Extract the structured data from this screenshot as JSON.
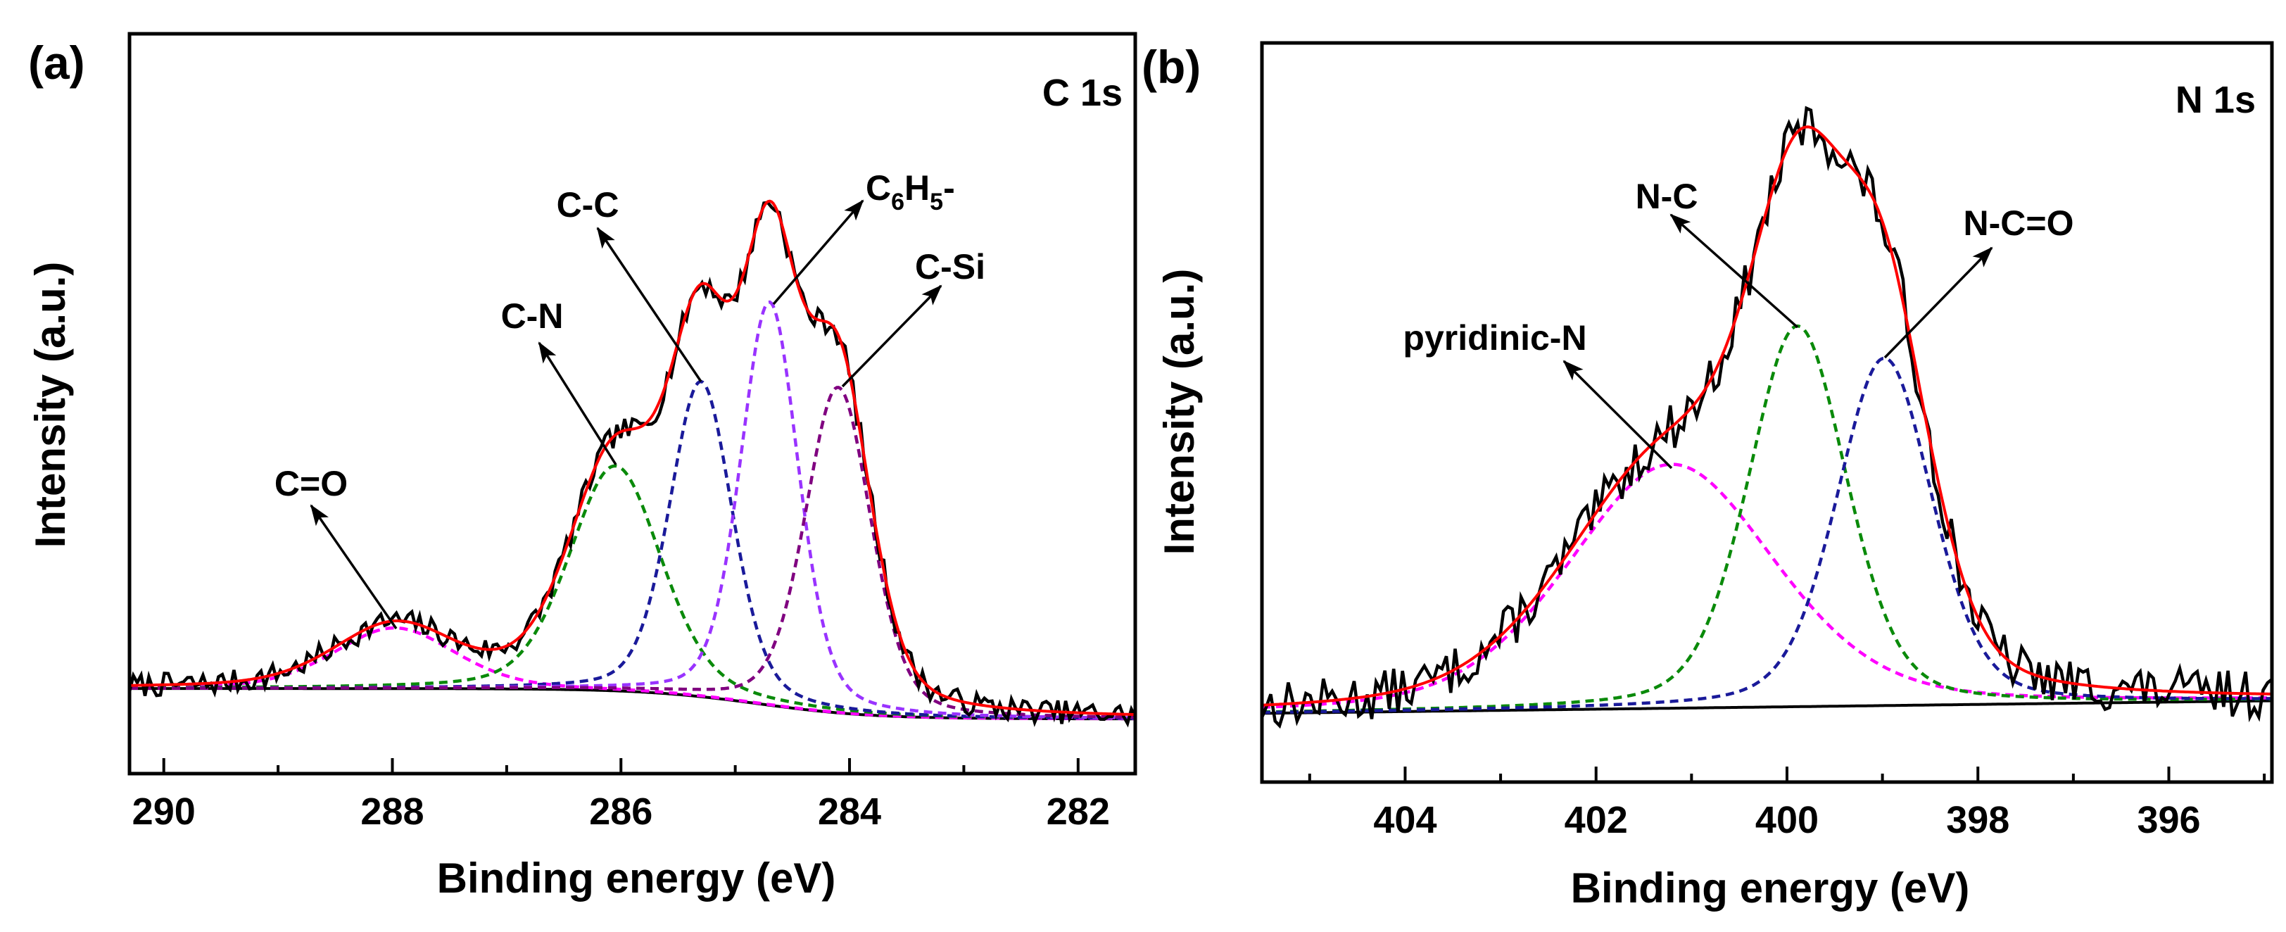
{
  "chart_data": [
    {
      "type": "line",
      "panel_label": "(a)",
      "title": "C 1s",
      "xlabel": "Binding energy (eV)",
      "ylabel": "Intensity (a.u.)",
      "xlim": [
        290.3,
        281.5
      ],
      "ylim": [
        0,
        100
      ],
      "x_reversed": true,
      "x_ticks": [
        290,
        288,
        286,
        284,
        282
      ],
      "x_minor_ticks": [
        289,
        287,
        285,
        283
      ],
      "x_tick_labels": [
        "290",
        "288",
        "286",
        "284",
        "282"
      ],
      "y_ticks": [],
      "grid": false,
      "baseline": {
        "high_be_level": 11.5,
        "low_be_level": 7.4,
        "step_center": 284.8,
        "step_width": 0.5,
        "color": "#000000"
      },
      "envelope_color": "#ff0000",
      "raw_color": "#000000",
      "components": [
        {
          "name": "C=O",
          "center": 287.98,
          "height": 8.2,
          "fwhm": 1.25,
          "color": "#ff00ff"
        },
        {
          "name": "C-N",
          "center": 286.05,
          "height": 30.4,
          "fwhm": 0.95,
          "color": "#0a8a0a"
        },
        {
          "name": "C-C",
          "center": 285.3,
          "height": 42.6,
          "fwhm": 0.65,
          "color": "#1a1a9a"
        },
        {
          "name": "C6H5-",
          "center": 284.7,
          "height": 54.5,
          "fwhm": 0.6,
          "color": "#9933ff"
        },
        {
          "name": "C-Si",
          "center": 284.1,
          "height": 44.0,
          "fwhm": 0.68,
          "color": "#800080"
        }
      ],
      "annotations": {
        "c_o": "C=O",
        "c_n": "C-N",
        "c_c": "C-C",
        "c6h5": {
          "base": "C",
          "sub1": "6",
          "mid": "H",
          "sub2": "5",
          "tail": "-"
        },
        "c_si": "C-Si"
      }
    },
    {
      "type": "line",
      "panel_label": "(b)",
      "title": "N 1s",
      "xlabel": "Binding energy (eV)",
      "ylabel": "Intensity (a.u.)",
      "xlim": [
        405.5,
        394.92
      ],
      "ylim": [
        0,
        100
      ],
      "x_reversed": true,
      "x_ticks": [
        404,
        402,
        400,
        398,
        396
      ],
      "x_minor_ticks": [
        405,
        403,
        401,
        399,
        397,
        395
      ],
      "x_tick_labels": [
        "404",
        "402",
        "400",
        "398",
        "396"
      ],
      "y_ticks": [],
      "grid": false,
      "baseline": {
        "high_be_level": 9.3,
        "low_be_level": 11.0,
        "color": "#000000"
      },
      "envelope_color": "#ff0000",
      "raw_color": "#000000",
      "components": [
        {
          "name": "pyridinic-N",
          "center": 401.21,
          "height": 33.0,
          "fwhm": 2.55,
          "color": "#ff00ff"
        },
        {
          "name": "N-C",
          "center": 399.89,
          "height": 51.5,
          "fwhm": 1.22,
          "color": "#0a8a0a"
        },
        {
          "name": "N-C=O",
          "center": 398.98,
          "height": 47.0,
          "fwhm": 1.18,
          "color": "#1a1a9a"
        }
      ],
      "annotations": {
        "pyridinic": "pyridinic-N",
        "n_c": "N-C",
        "n_c_o": "N-C=O"
      }
    }
  ]
}
